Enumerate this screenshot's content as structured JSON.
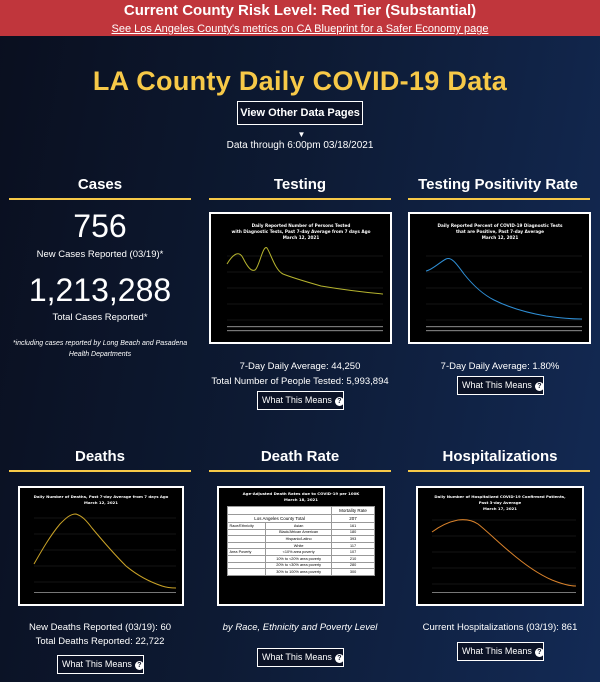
{
  "banner": {
    "title": "Current County Risk Level: Red Tier (Substantial)",
    "link": "See Los Angeles County's metrics on CA Blueprint for a Safer Economy page",
    "color": "#c0363c"
  },
  "header": {
    "title": "LA County Daily COVID-19 Data",
    "view_button": "View Other Data Pages",
    "data_through": "Data through 6:00pm 03/18/2021",
    "accent_color": "#f7c948"
  },
  "cases": {
    "title": "Cases",
    "new_cases": "756",
    "new_cases_label": "New Cases Reported (03/19)*",
    "total_cases": "1,213,288",
    "total_cases_label": "Total Cases Reported*",
    "note": "*including cases reported by Long Beach and Pasadena Health Departments"
  },
  "testing": {
    "title": "Testing",
    "chart_title_1": "Daily Reported Number of Persons Tested",
    "chart_title_2": "with Diagnostic Tests, Past 7-day Average from 7 days Ago",
    "chart_title_3": "March 12, 2021",
    "avg_label": "7-Day Daily Average: 44,250",
    "total_label": "Total Number of People Tested: 5,993,894",
    "button": "What This Means"
  },
  "positivity": {
    "title": "Testing Positivity Rate",
    "chart_title_1": "Daily Reported Percent of COVID-19 Diagnostic Tests",
    "chart_title_2": "that are Positive, Past 7-day Average",
    "chart_title_3": "March 12, 2021",
    "avg_label": "7-Day Daily Average: 1.80%",
    "button": "What This Means"
  },
  "deaths": {
    "title": "Deaths",
    "chart_title_1": "Daily Number of Deaths, Past 7-day Average from 7 days Ago",
    "chart_title_2": "March 12, 2021",
    "new_label": "New Deaths Reported (03/19): 60",
    "total_label": "Total Deaths Reported: 22,722",
    "button": "What This Means"
  },
  "death_rate": {
    "title": "Death Rate",
    "chart_title_1": "Age-Adjusted Death Rates due to COVID-19 per 100K",
    "chart_title_2": "March 18, 2021",
    "table_header": "Mortality Rate",
    "table_total_label": "Los Angeles County Total",
    "table_total_value": "207",
    "rows": [
      {
        "group": "Race/Ethnicity",
        "sub": "Asian",
        "value": "161"
      },
      {
        "group": "",
        "sub": "Black/African American",
        "value": "180"
      },
      {
        "group": "",
        "sub": "Hispanic/Latino",
        "value": "393"
      },
      {
        "group": "",
        "sub": "White",
        "value": "117"
      },
      {
        "group": "Area Poverty",
        "sub": "<10% area poverty",
        "value": "107"
      },
      {
        "group": "",
        "sub": "10% to <20% area poverty",
        "value": "210"
      },
      {
        "group": "",
        "sub": "20% to <30% area poverty",
        "value": "280"
      },
      {
        "group": "",
        "sub": "30% to 100% area poverty",
        "value": "300"
      }
    ],
    "caption": "by Race, Ethnicity and Poverty Level",
    "button": "What This Means"
  },
  "hospitalizations": {
    "title": "Hospitalizations",
    "chart_title_1": "Daily Number of Hospitalized COVID-19 Confirmed Patients,",
    "chart_title_2": "Past 3-day Average",
    "chart_title_3": "March 17, 2021",
    "current_label": "Current Hospitalizations (03/19): 861",
    "button": "What This Means"
  },
  "series_colors": {
    "testing": "#b5b32e",
    "positivity": "#2f8fd6",
    "deaths": "#c9a227",
    "hospitalizations": "#d9822b"
  }
}
